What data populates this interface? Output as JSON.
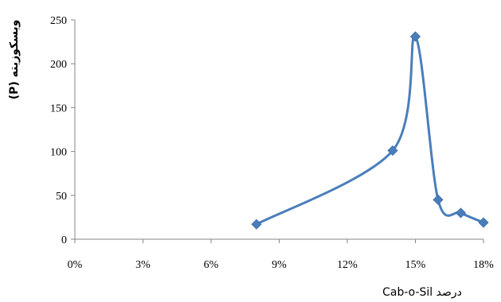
{
  "chart_data": {
    "type": "line",
    "xlabel": "درصد Cab-o-Sil",
    "ylabel": "ویسکوزیته (P)",
    "x_tick_labels": [
      "0%",
      "3%",
      "6%",
      "9%",
      "12%",
      "15%",
      "18%"
    ],
    "x_ticks": [
      0,
      3,
      6,
      9,
      12,
      15,
      18
    ],
    "y_tick_labels": [
      "0",
      "50",
      "100",
      "150",
      "200",
      "250"
    ],
    "y_ticks": [
      0,
      50,
      100,
      150,
      200,
      250
    ],
    "xlim": [
      0,
      18
    ],
    "ylim": [
      0,
      250
    ],
    "grid": false,
    "smooth": true,
    "series": [
      {
        "x": [
          8,
          14,
          15,
          16,
          17,
          18
        ],
        "values": [
          17,
          101,
          231,
          45,
          30,
          19
        ],
        "color": "#4a7ebb",
        "marker": "diamond"
      }
    ]
  }
}
